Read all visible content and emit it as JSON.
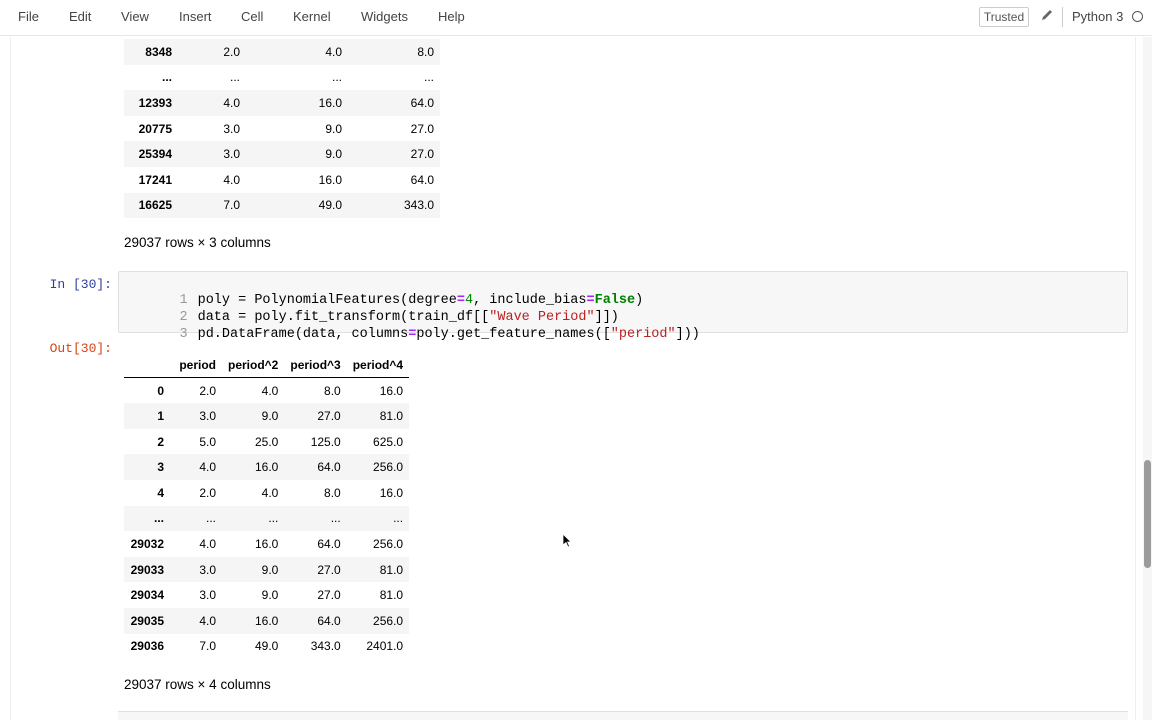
{
  "menubar": {
    "items": [
      "File",
      "Edit",
      "View",
      "Insert",
      "Cell",
      "Kernel",
      "Widgets",
      "Help"
    ],
    "trusted_label": "Trusted",
    "kernel_name": "Python 3",
    "edit_icon": "pencil-icon"
  },
  "prev_output": {
    "rows": [
      {
        "index": "8348",
        "c1": "2.0",
        "c2": "4.0",
        "c3": "8.0"
      },
      {
        "index": "...",
        "c1": "...",
        "c2": "...",
        "c3": "..."
      },
      {
        "index": "12393",
        "c1": "4.0",
        "c2": "16.0",
        "c3": "64.0"
      },
      {
        "index": "20775",
        "c1": "3.0",
        "c2": "9.0",
        "c3": "27.0"
      },
      {
        "index": "25394",
        "c1": "3.0",
        "c2": "9.0",
        "c3": "27.0"
      },
      {
        "index": "17241",
        "c1": "4.0",
        "c2": "16.0",
        "c3": "64.0"
      },
      {
        "index": "16625",
        "c1": "7.0",
        "c2": "49.0",
        "c3": "343.0"
      }
    ],
    "shape_text": "29037 rows × 3 columns"
  },
  "cell30": {
    "in_prompt": "In [30]:",
    "out_prompt": "Out[30]:",
    "code_lines": [
      {
        "num": "1",
        "text": "poly = PolynomialFeatures(degree=4, include_bias=False)"
      },
      {
        "num": "2",
        "text": "data = poly.fit_transform(train_df[[\"Wave Period\"]])"
      },
      {
        "num": "3",
        "text": "pd.DataFrame(data, columns=poly.get_feature_names([\"period\"]))"
      }
    ],
    "table": {
      "columns": [
        "",
        "period",
        "period^2",
        "period^3",
        "period^4"
      ],
      "rows": [
        [
          "0",
          "2.0",
          "4.0",
          "8.0",
          "16.0"
        ],
        [
          "1",
          "3.0",
          "9.0",
          "27.0",
          "81.0"
        ],
        [
          "2",
          "5.0",
          "25.0",
          "125.0",
          "625.0"
        ],
        [
          "3",
          "4.0",
          "16.0",
          "64.0",
          "256.0"
        ],
        [
          "4",
          "2.0",
          "4.0",
          "8.0",
          "16.0"
        ],
        [
          "...",
          "...",
          "...",
          "...",
          "..."
        ],
        [
          "29032",
          "4.0",
          "16.0",
          "64.0",
          "256.0"
        ],
        [
          "29033",
          "3.0",
          "9.0",
          "27.0",
          "81.0"
        ],
        [
          "29034",
          "3.0",
          "9.0",
          "27.0",
          "81.0"
        ],
        [
          "29035",
          "4.0",
          "16.0",
          "64.0",
          "256.0"
        ],
        [
          "29036",
          "7.0",
          "49.0",
          "343.0",
          "2401.0"
        ]
      ]
    },
    "shape_text": "29037 rows × 4 columns"
  }
}
